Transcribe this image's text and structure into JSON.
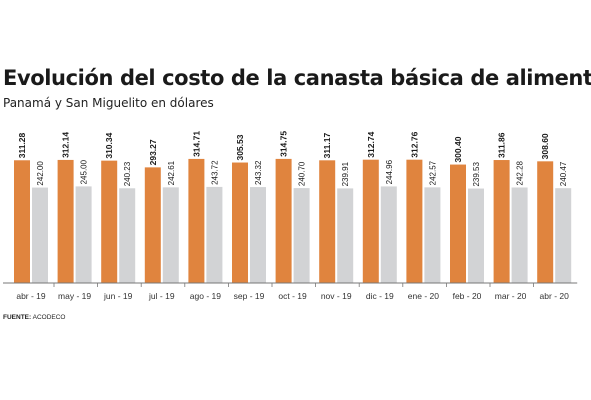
{
  "title": "Evolución del costo de la canasta básica de alimentos",
  "subtitle": "Panamá y San Miguelito en dólares",
  "source": {
    "label": "FUENTE:",
    "text": "ACODECO"
  },
  "colors": {
    "series_1": "#e0843e",
    "series_2": "#d2d3d5",
    "axis": "#777777",
    "text": "#1a1a1a"
  },
  "chart_data": {
    "type": "bar",
    "categories": [
      "abr - 19",
      "may - 19",
      "jun - 19",
      "jul - 19",
      "ago - 19",
      "sep - 19",
      "oct - 19",
      "nov - 19",
      "dic - 19",
      "ene - 20",
      "feb - 20",
      "mar - 20",
      "abr - 20"
    ],
    "series": [
      {
        "values": [
          311.28,
          312.14,
          310.34,
          293.27,
          314.71,
          305.53,
          314.75,
          311.17,
          312.74,
          312.76,
          300.4,
          311.86,
          308.6
        ],
        "labels": [
          "311.28",
          "312.14",
          "310.34",
          "293.27",
          "314.71",
          "305.53",
          "314.75",
          "311.17",
          "312.74",
          "312.76",
          "300.40",
          "311.86",
          "308.60"
        ]
      },
      {
        "values": [
          242.0,
          245.0,
          240.23,
          242.61,
          243.72,
          243.32,
          240.7,
          239.91,
          244.96,
          242.57,
          239.53,
          242.28,
          240.47
        ],
        "labels": [
          "242.00",
          "245.00",
          "240.23",
          "242.61",
          "243.72",
          "243.32",
          "240.70",
          "239.91",
          "244.96",
          "242.57",
          "239.53",
          "242.28",
          "240.47"
        ]
      }
    ],
    "ylim": [
      0,
      350
    ],
    "grid": false,
    "legend": "none",
    "xlabel": "",
    "ylabel": ""
  }
}
